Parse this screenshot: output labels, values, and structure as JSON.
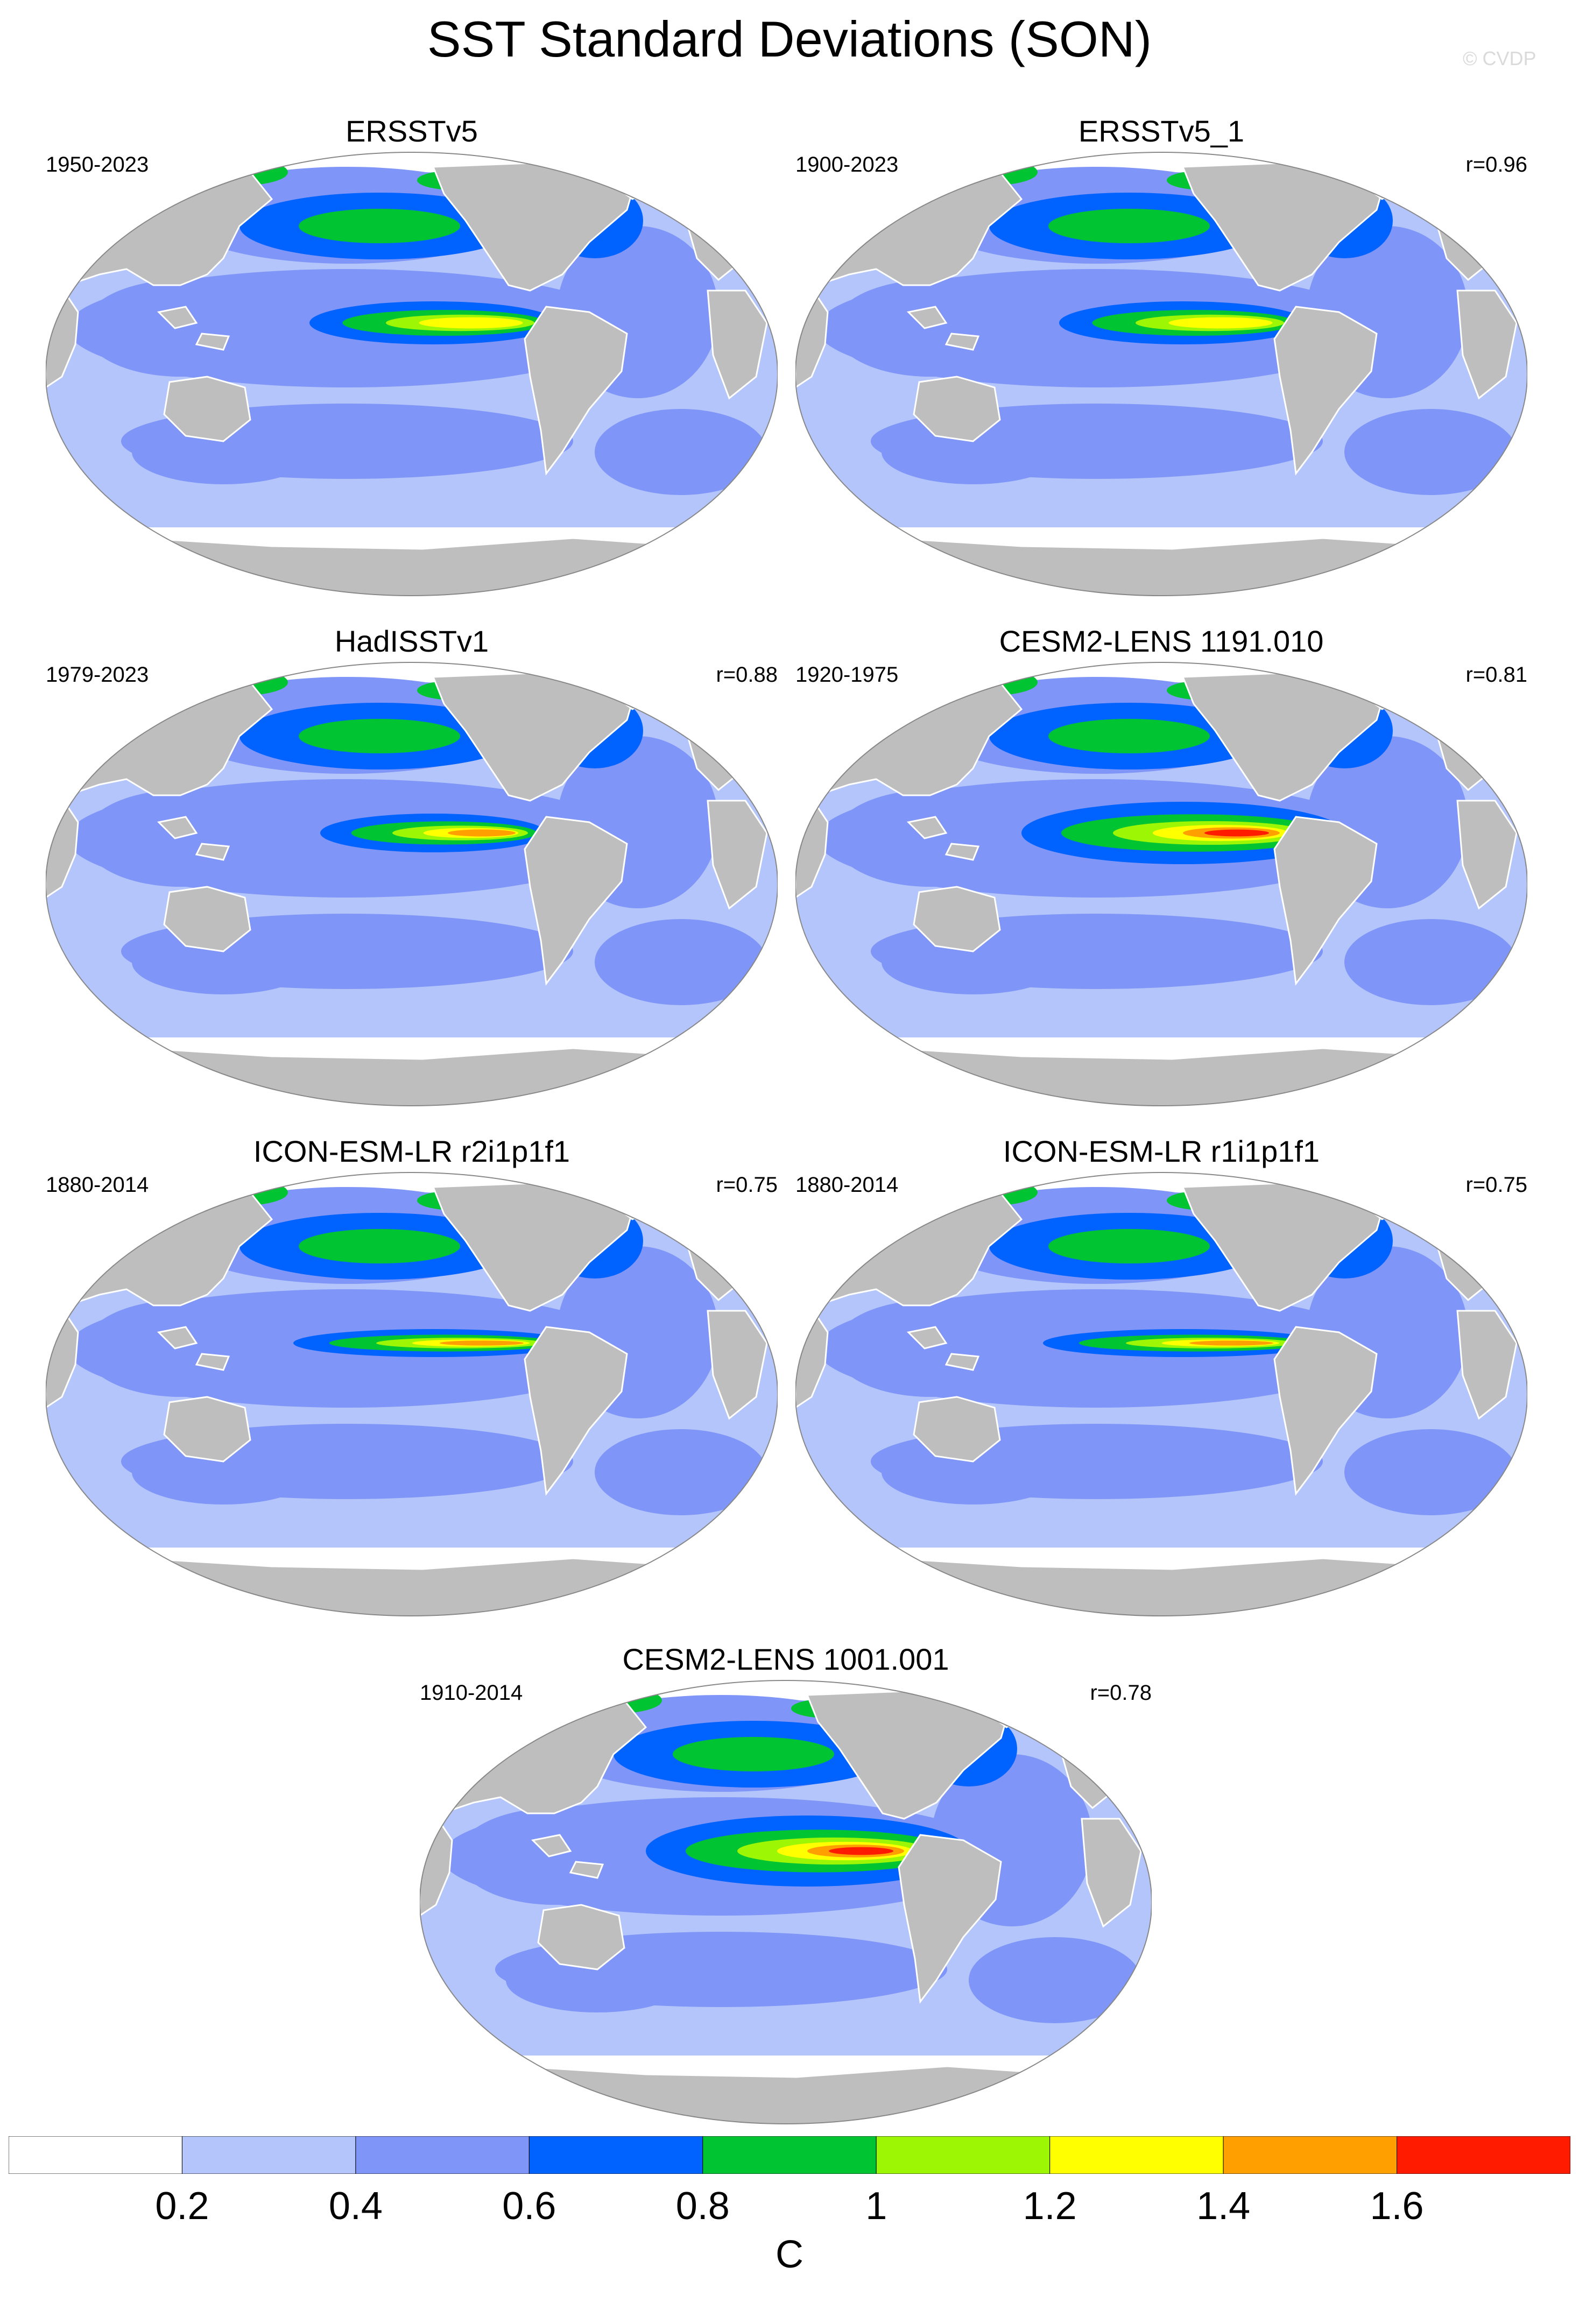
{
  "title": "SST Standard Deviations (SON)",
  "credit": "© CVDP",
  "panels": [
    {
      "title": "ERSSTv5",
      "years": "1950-2023",
      "r": ""
    },
    {
      "title": "ERSSTv5_1",
      "years": "1900-2023",
      "r": "r=0.96"
    },
    {
      "title": "HadISSTv1",
      "years": "1979-2023",
      "r": "r=0.88"
    },
    {
      "title": "CESM2-LENS 1191.010",
      "years": "1920-1975",
      "r": "r=0.81"
    },
    {
      "title": "ICON-ESM-LR r2i1p1f1",
      "years": "1880-2014",
      "r": "r=0.75"
    },
    {
      "title": "ICON-ESM-LR r1i1p1f1",
      "years": "1880-2014",
      "r": "r=0.75"
    },
    {
      "title": "CESM2-LENS 1001.001",
      "years": "1910-2014",
      "r": "r=0.78"
    }
  ],
  "colorbar": {
    "unit": "C",
    "labels": [
      "0.2",
      "0.4",
      "0.6",
      "0.8",
      "1",
      "1.2",
      "1.4",
      "1.6"
    ],
    "colors": [
      "#ffffff",
      "#b3c5fb",
      "#7f95f7",
      "#0062ff",
      "#00c431",
      "#9df603",
      "#ffff00",
      "#ff9f00",
      "#ff1b00"
    ]
  },
  "colors": {
    "land": "#bebebe",
    "ocean_base": "#b3c5fb",
    "ice_edge": "#ffffff"
  }
}
